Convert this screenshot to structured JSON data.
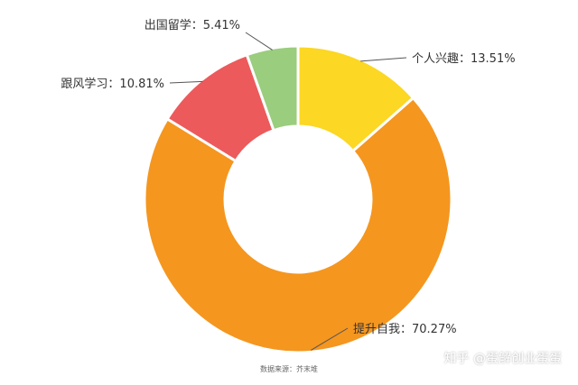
{
  "chart_data": {
    "type": "pie",
    "donut": true,
    "categories": [
      "个人兴趣",
      "提升自我",
      "跟风学习",
      "出国留学"
    ],
    "values": [
      13.51,
      70.27,
      10.81,
      5.41
    ],
    "labels": [
      "个人兴趣：13.51%",
      "提升自我：70.27%",
      "跟风学习：10.81%",
      "出国留学：5.41%"
    ],
    "colors": [
      "#fcd723",
      "#f5961f",
      "#ec5a5c",
      "#9acd7e"
    ],
    "start": "12 o'clock",
    "direction": "clockwise",
    "source": "数据来源：芥末堆"
  },
  "watermark": "知乎 @蛋解创业蛋蛋"
}
